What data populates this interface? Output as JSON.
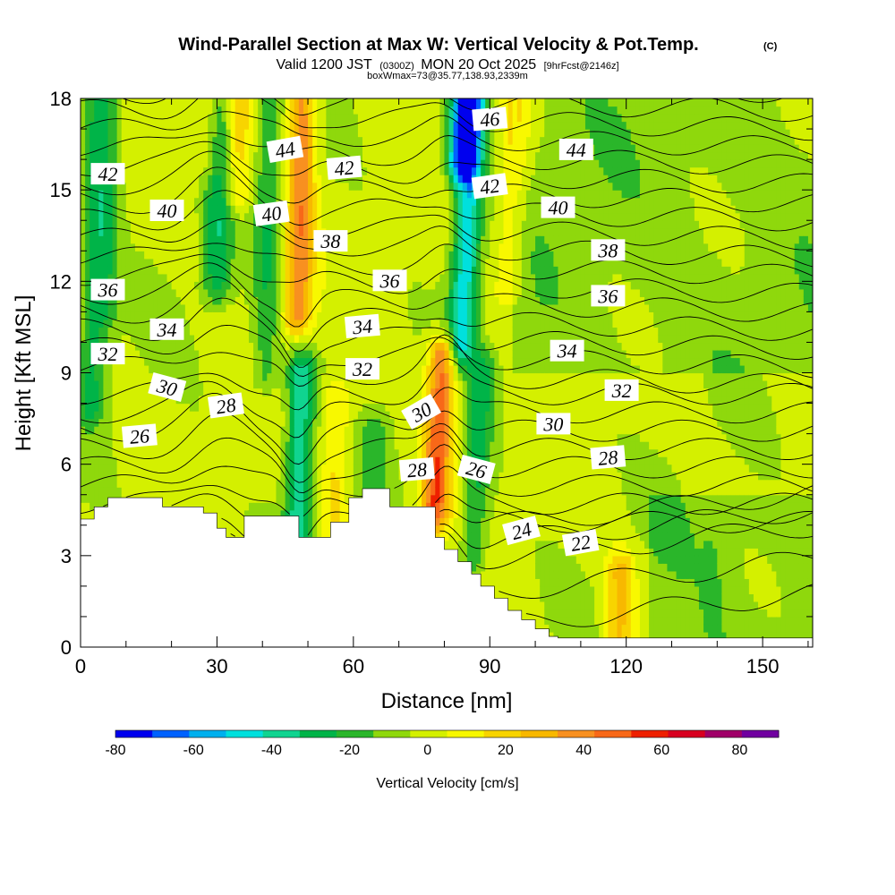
{
  "title": {
    "main": "Wind-Parallel Section at Max W: Vertical Velocity & Pot.Temp.",
    "copyright": "(C)",
    "valid_prefix": "Valid 1200 JST",
    "valid_utc": "(0300Z)",
    "valid_date": "MON 20 Oct 2025",
    "forecast": "[9hrFcst@2146z]",
    "boxwmax": "boxWmax=73@35.77,138.93,2339m"
  },
  "chart_data": {
    "type": "heatmap",
    "xlabel": "Distance [nm]",
    "ylabel": "Height [Kft MSL]",
    "xlim": [
      0,
      161
    ],
    "ylim": [
      0,
      18
    ],
    "xticks": [
      0,
      30,
      60,
      90,
      120,
      150
    ],
    "yticks": [
      0,
      3,
      6,
      9,
      12,
      15,
      18
    ],
    "colorbar": {
      "label": "Vertical Velocity [cm/s]",
      "levels": [
        -80,
        -70,
        -60,
        -50,
        -40,
        -30,
        -20,
        -10,
        0,
        10,
        20,
        30,
        40,
        50,
        60,
        70,
        80,
        90
      ],
      "tick_values": [
        -80,
        -60,
        -40,
        -20,
        0,
        20,
        40,
        60,
        80
      ],
      "colors": [
        "#0000ee",
        "#0062ff",
        "#00b0ee",
        "#00e0dd",
        "#10d490",
        "#00b448",
        "#2ab62a",
        "#8fd80c",
        "#d4f000",
        "#f8f800",
        "#f8d400",
        "#f8b800",
        "#f89020",
        "#f86818",
        "#ee2000",
        "#d80020",
        "#a00068",
        "#7000a0"
      ]
    },
    "w_features": [
      {
        "x": 2,
        "zmin": 8,
        "zmax": 18,
        "w": -25
      },
      {
        "x": 5,
        "zmin": 11,
        "zmax": 18,
        "w": -15
      },
      {
        "x": 27,
        "zmin": 16,
        "zmax": 18,
        "w": 15
      },
      {
        "x": 29,
        "zmin": 12,
        "zmax": 18,
        "w": -30
      },
      {
        "x": 33,
        "zmin": 15,
        "zmax": 18,
        "w": 25
      },
      {
        "x": 40,
        "zmin": 9,
        "zmax": 18,
        "w": -20
      },
      {
        "x": 47,
        "zmin": 11,
        "zmax": 18,
        "w": 45
      },
      {
        "x": 48,
        "zmin": 3.6,
        "zmax": 9,
        "w": -40
      },
      {
        "x": 56,
        "zmin": 4,
        "zmax": 8,
        "w": 20
      },
      {
        "x": 64,
        "zmin": 5,
        "zmax": 7,
        "w": -15
      },
      {
        "x": 78,
        "zmin": 4.5,
        "zmax": 9.5,
        "w": 55
      },
      {
        "x": 80,
        "zmin": 16,
        "zmax": 18,
        "w": -70
      },
      {
        "x": 82,
        "zmin": 10,
        "zmax": 18,
        "w": -50
      },
      {
        "x": 87,
        "zmin": 3,
        "zmax": 9,
        "w": -25
      },
      {
        "x": 92,
        "zmin": 12,
        "zmax": 18,
        "w": 20
      },
      {
        "x": 119,
        "zmin": 0.5,
        "zmax": 2.5,
        "w": 30
      },
      {
        "x": 140,
        "zmin": 0,
        "zmax": 3.5,
        "w": -5
      }
    ],
    "terrain": {
      "x": [
        0,
        3,
        3,
        6,
        6,
        18,
        18,
        27,
        27,
        30,
        30,
        32,
        32,
        36,
        36,
        48,
        48,
        55,
        55,
        59,
        59,
        62,
        62,
        68,
        68,
        78,
        78,
        80,
        80,
        83,
        83,
        86,
        86,
        88,
        88,
        91,
        91,
        94,
        94,
        97,
        97,
        100,
        100,
        103,
        103,
        105,
        105,
        161
      ],
      "z": [
        4.2,
        4.2,
        4.6,
        4.6,
        4.9,
        4.9,
        4.6,
        4.6,
        4.4,
        4.4,
        3.9,
        3.9,
        3.6,
        3.6,
        4.3,
        4.3,
        3.6,
        3.6,
        4.1,
        4.1,
        4.9,
        4.9,
        5.2,
        5.2,
        4.6,
        4.6,
        3.6,
        3.6,
        3.2,
        3.2,
        2.8,
        2.8,
        2.4,
        2.4,
        2.0,
        2.0,
        1.6,
        1.6,
        1.2,
        1.2,
        0.9,
        0.9,
        0.6,
        0.6,
        0.35,
        0.35,
        0.3,
        0.3
      ]
    },
    "theta_contours": {
      "levels": [
        16,
        18,
        20,
        21,
        22,
        23,
        24,
        25,
        26,
        27,
        28,
        29,
        30,
        31,
        32,
        33,
        34,
        35,
        36,
        37,
        38,
        39,
        40,
        41,
        42,
        43,
        44,
        45,
        46,
        47,
        48
      ],
      "labels": [
        {
          "text": "42",
          "x": 6,
          "z": 15.5,
          "angle": 0
        },
        {
          "text": "40",
          "x": 19,
          "z": 14.3,
          "angle": 0
        },
        {
          "text": "44",
          "x": 45,
          "z": 16.3,
          "angle": -10
        },
        {
          "text": "40",
          "x": 42,
          "z": 14.2,
          "angle": -8
        },
        {
          "text": "42",
          "x": 58,
          "z": 15.7,
          "angle": -5
        },
        {
          "text": "38",
          "x": 55,
          "z": 13.3,
          "angle": 0
        },
        {
          "text": "46",
          "x": 90,
          "z": 17.3,
          "angle": -5
        },
        {
          "text": "44",
          "x": 109,
          "z": 16.3,
          "angle": 0
        },
        {
          "text": "42",
          "x": 90,
          "z": 15.1,
          "angle": -8
        },
        {
          "text": "40",
          "x": 105,
          "z": 14.4,
          "angle": 0
        },
        {
          "text": "38",
          "x": 116,
          "z": 13.0,
          "angle": 0
        },
        {
          "text": "36",
          "x": 6,
          "z": 11.7,
          "angle": 0
        },
        {
          "text": "36",
          "x": 68,
          "z": 12.0,
          "angle": 0
        },
        {
          "text": "36",
          "x": 116,
          "z": 11.5,
          "angle": 0
        },
        {
          "text": "34",
          "x": 19,
          "z": 10.4,
          "angle": 0
        },
        {
          "text": "34",
          "x": 62,
          "z": 10.5,
          "angle": -5
        },
        {
          "text": "34",
          "x": 107,
          "z": 9.7,
          "angle": 0
        },
        {
          "text": "32",
          "x": 6,
          "z": 9.6,
          "angle": 0
        },
        {
          "text": "32",
          "x": 62,
          "z": 9.1,
          "angle": 0
        },
        {
          "text": "32",
          "x": 119,
          "z": 8.4,
          "angle": 0
        },
        {
          "text": "30",
          "x": 19,
          "z": 8.5,
          "angle": 15
        },
        {
          "text": "28",
          "x": 32,
          "z": 7.9,
          "angle": -8
        },
        {
          "text": "30",
          "x": 75,
          "z": 7.7,
          "angle": -30
        },
        {
          "text": "30",
          "x": 104,
          "z": 7.3,
          "angle": 0
        },
        {
          "text": "26",
          "x": 13,
          "z": 6.9,
          "angle": -5
        },
        {
          "text": "28",
          "x": 74,
          "z": 5.8,
          "angle": -5
        },
        {
          "text": "28",
          "x": 116,
          "z": 6.2,
          "angle": -5
        },
        {
          "text": "26",
          "x": 87,
          "z": 5.8,
          "angle": 15
        },
        {
          "text": "24",
          "x": 97,
          "z": 3.8,
          "angle": -15
        },
        {
          "text": "22",
          "x": 110,
          "z": 3.4,
          "angle": -10
        }
      ]
    }
  }
}
